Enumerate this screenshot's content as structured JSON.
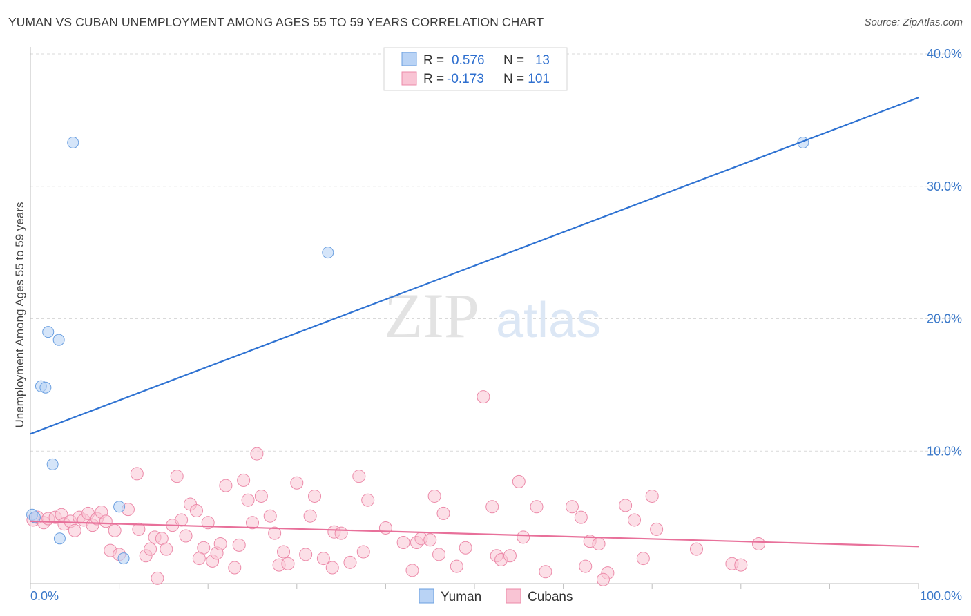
{
  "title": "YUMAN VS CUBAN UNEMPLOYMENT AMONG AGES 55 TO 59 YEARS CORRELATION CHART",
  "source": "Source: ZipAtlas.com",
  "watermark": {
    "zip": "ZIP",
    "atlas": "atlas"
  },
  "legend_top": {
    "rows": [
      {
        "r_label": "R =",
        "r_value": "0.576",
        "n_label": "N =",
        "n_value": "13"
      },
      {
        "r_label": "R =",
        "r_value": "-0.173",
        "n_label": "N =",
        "n_value": "101"
      }
    ]
  },
  "bottom_legend": [
    "Yuman",
    "Cubans"
  ],
  "colors": {
    "yuman_fill": "#b9d3f5",
    "yuman_stroke": "#6a9fe0",
    "yuman_line": "#2e72d2",
    "cubans_fill": "#f9c4d4",
    "cubans_stroke": "#ec8aa9",
    "cubans_line": "#e8709a",
    "tick_text": "#3a78c9",
    "grid": "#d9d9d9"
  },
  "chart_data": {
    "type": "scatter",
    "title": "YUMAN VS CUBAN UNEMPLOYMENT AMONG AGES 55 TO 59 YEARS CORRELATION CHART",
    "xlabel": "",
    "ylabel": "Unemployment Among Ages 55 to 59 years",
    "xlim": [
      0,
      100
    ],
    "ylim": [
      0,
      40
    ],
    "x_tick_labels": [
      "0.0%",
      "100.0%"
    ],
    "y_ticks": [
      10,
      20,
      30,
      40
    ],
    "y_tick_labels": [
      "10.0%",
      "20.0%",
      "30.0%",
      "40.0%"
    ],
    "grid": true,
    "series": [
      {
        "name": "Yuman",
        "r": 0.576,
        "n": 13,
        "trend": {
          "x": [
            0,
            100
          ],
          "y": [
            11.3,
            36.7
          ]
        },
        "points": [
          [
            0.2,
            5.2
          ],
          [
            0.5,
            5.0
          ],
          [
            1.2,
            14.9
          ],
          [
            1.7,
            14.8
          ],
          [
            2.0,
            19.0
          ],
          [
            3.2,
            18.4
          ],
          [
            4.8,
            33.3
          ],
          [
            2.5,
            9.0
          ],
          [
            3.3,
            3.4
          ],
          [
            10.0,
            5.8
          ],
          [
            10.5,
            1.9
          ],
          [
            33.5,
            25.0
          ],
          [
            87.0,
            33.3
          ]
        ]
      },
      {
        "name": "Cubans",
        "r": -0.173,
        "n": 101,
        "trend": {
          "x": [
            0,
            100
          ],
          "y": [
            4.7,
            2.8
          ]
        },
        "points": [
          [
            0.3,
            4.8
          ],
          [
            0.8,
            5.0
          ],
          [
            1.5,
            4.6
          ],
          [
            2.0,
            4.9
          ],
          [
            2.8,
            5.0
          ],
          [
            3.5,
            5.2
          ],
          [
            3.8,
            4.5
          ],
          [
            4.5,
            4.7
          ],
          [
            5.0,
            4.0
          ],
          [
            5.5,
            5.0
          ],
          [
            6.0,
            4.8
          ],
          [
            6.5,
            5.3
          ],
          [
            7.0,
            4.4
          ],
          [
            7.5,
            4.9
          ],
          [
            8.0,
            5.4
          ],
          [
            8.5,
            4.7
          ],
          [
            9.0,
            2.5
          ],
          [
            9.5,
            4.0
          ],
          [
            10.0,
            2.2
          ],
          [
            11.0,
            5.6
          ],
          [
            12.0,
            8.3
          ],
          [
            12.2,
            4.1
          ],
          [
            13.0,
            2.1
          ],
          [
            13.5,
            2.6
          ],
          [
            14.0,
            3.5
          ],
          [
            14.3,
            0.4
          ],
          [
            14.8,
            3.4
          ],
          [
            15.3,
            2.6
          ],
          [
            16.0,
            4.4
          ],
          [
            16.5,
            8.1
          ],
          [
            17.0,
            4.8
          ],
          [
            17.5,
            3.6
          ],
          [
            18.0,
            6.0
          ],
          [
            18.7,
            5.5
          ],
          [
            19.5,
            2.7
          ],
          [
            20.0,
            4.6
          ],
          [
            20.5,
            1.7
          ],
          [
            21.0,
            2.3
          ],
          [
            21.4,
            3.0
          ],
          [
            22.0,
            7.4
          ],
          [
            23.0,
            1.2
          ],
          [
            24.0,
            7.8
          ],
          [
            24.5,
            6.3
          ],
          [
            25.0,
            4.6
          ],
          [
            25.5,
            9.8
          ],
          [
            26.0,
            6.6
          ],
          [
            27.0,
            5.1
          ],
          [
            27.5,
            3.8
          ],
          [
            28.0,
            1.4
          ],
          [
            28.5,
            2.4
          ],
          [
            29.0,
            1.5
          ],
          [
            30.0,
            7.6
          ],
          [
            31.0,
            2.2
          ],
          [
            31.5,
            5.1
          ],
          [
            32.0,
            6.6
          ],
          [
            33.0,
            1.9
          ],
          [
            34.0,
            1.2
          ],
          [
            34.2,
            3.9
          ],
          [
            35.0,
            3.8
          ],
          [
            36.0,
            1.6
          ],
          [
            37.0,
            8.1
          ],
          [
            38.0,
            6.3
          ],
          [
            40.0,
            4.2
          ],
          [
            42.0,
            3.1
          ],
          [
            43.0,
            1.0
          ],
          [
            43.5,
            3.1
          ],
          [
            44.0,
            3.4
          ],
          [
            45.0,
            3.3
          ],
          [
            45.5,
            6.6
          ],
          [
            46.0,
            2.2
          ],
          [
            46.5,
            5.3
          ],
          [
            49.0,
            2.7
          ],
          [
            51.0,
            14.1
          ],
          [
            52.0,
            5.8
          ],
          [
            52.5,
            2.1
          ],
          [
            53.0,
            1.8
          ],
          [
            54.0,
            2.1
          ],
          [
            55.0,
            7.7
          ],
          [
            55.5,
            3.5
          ],
          [
            57.0,
            5.8
          ],
          [
            58.0,
            0.9
          ],
          [
            61.0,
            5.8
          ],
          [
            62.0,
            5.0
          ],
          [
            62.5,
            1.3
          ],
          [
            63.0,
            3.2
          ],
          [
            64.0,
            3.0
          ],
          [
            65.0,
            0.8
          ],
          [
            67.0,
            5.9
          ],
          [
            68.0,
            4.8
          ],
          [
            69.0,
            1.9
          ],
          [
            70.0,
            6.6
          ],
          [
            70.5,
            4.1
          ],
          [
            75.0,
            2.6
          ],
          [
            79.0,
            1.5
          ],
          [
            80.0,
            1.4
          ],
          [
            82.0,
            3.0
          ],
          [
            64.5,
            0.3
          ],
          [
            19.0,
            1.9
          ],
          [
            23.5,
            2.9
          ],
          [
            37.5,
            2.4
          ],
          [
            48.0,
            1.3
          ]
        ]
      }
    ]
  }
}
